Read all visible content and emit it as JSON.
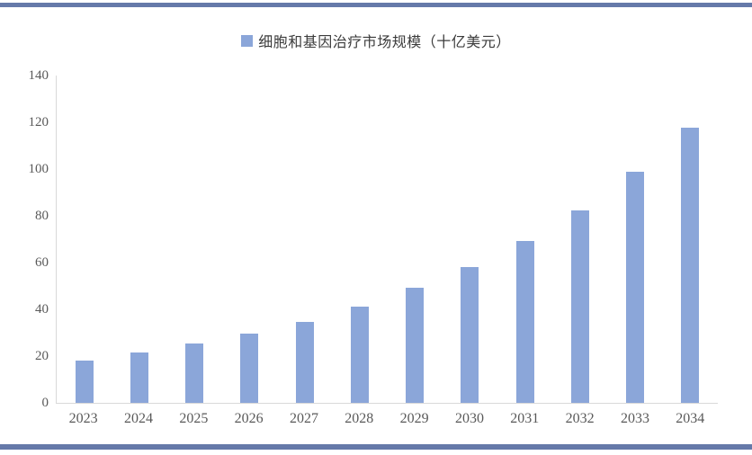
{
  "page": {
    "background": "#ffffff",
    "divider_color": "#6579a9"
  },
  "legend": {
    "label": "细胞和基因治疗市场规模（十亿美元）",
    "marker_color": "#8ba6d9"
  },
  "chart_data": {
    "type": "bar",
    "title": "",
    "xlabel": "",
    "ylabel": "",
    "categories": [
      "2023",
      "2024",
      "2025",
      "2026",
      "2027",
      "2028",
      "2029",
      "2030",
      "2031",
      "2032",
      "2033",
      "2034"
    ],
    "values": [
      18.1,
      21.4,
      25.2,
      29.5,
      34.8,
      41.2,
      49.1,
      58.2,
      69.1,
      82.4,
      98.7,
      117.8
    ],
    "series_name": "细胞和基因治疗市场规模（十亿美元）",
    "ylim": [
      0,
      140
    ],
    "yticks": [
      0,
      20,
      40,
      60,
      80,
      100,
      120,
      140
    ],
    "grid": false,
    "legend_position": "top-center",
    "bar_color": "#8ba6d9",
    "axis_line_color": "#d9d9d9",
    "tick_label_color": "#595959"
  }
}
